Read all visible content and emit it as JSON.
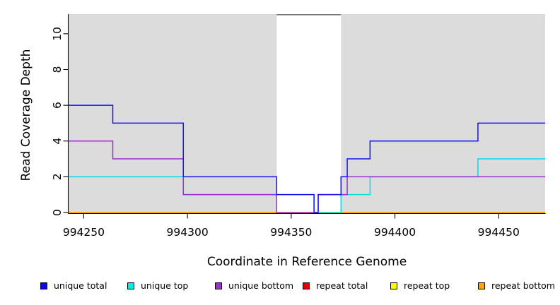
{
  "figure": {
    "background": "#ffffff",
    "panel_color": "#dcdcdc",
    "axis_color": "#000000"
  },
  "axes": {
    "x_label": "Coordinate in Reference Genome",
    "y_label": "Read Coverage Depth",
    "x_ticks": [
      "994250",
      "994300",
      "994350",
      "994400",
      "994450"
    ],
    "x_tick_values": [
      994250,
      994300,
      994350,
      994400,
      994450
    ],
    "y_ticks": [
      "0",
      "2",
      "4",
      "6",
      "8",
      "10"
    ],
    "y_tick_values": [
      0,
      2,
      4,
      6,
      8,
      10
    ]
  },
  "legend": {
    "items": [
      {
        "label": "unique total",
        "color": "#0a0af0"
      },
      {
        "label": "unique top",
        "color": "#00eded"
      },
      {
        "label": "unique bottom",
        "color": "#9932cc"
      },
      {
        "label": "repeat total",
        "color": "#e60000"
      },
      {
        "label": "repeat top",
        "color": "#fbfb00"
      },
      {
        "label": "repeat bottom",
        "color": "#ffa305"
      }
    ]
  },
  "chart_data": {
    "type": "line",
    "subtype": "step-coverage",
    "title": "",
    "xlabel": "Coordinate in Reference Genome",
    "ylabel": "Read Coverage Depth",
    "xlim": [
      994242.7,
      994472.4
    ],
    "ylim": [
      0,
      11.1
    ],
    "grid": false,
    "legend_position": "bottom-horizontal",
    "shaded_regions": [
      {
        "from": 994242.7,
        "to": 994343,
        "color": "#dcdcdc"
      },
      {
        "from": 994374,
        "to": 994472.4,
        "color": "#dcdcdc"
      }
    ],
    "masked_gap": {
      "from": 994343,
      "to": 994374,
      "fill": "#ffffff",
      "top_marker_color": "#787878"
    },
    "series": [
      {
        "name": "repeat total",
        "color": "#e60000",
        "x": [
          994242.7,
          994472.4
        ],
        "depths": [
          0
        ]
      },
      {
        "name": "repeat top",
        "color": "#fbfb00",
        "x": [
          994242.7,
          994472.4
        ],
        "depths": [
          0
        ]
      },
      {
        "name": "repeat bottom",
        "color": "#ffa305",
        "x": [
          994242.7,
          994472.4
        ],
        "depths": [
          0
        ]
      },
      {
        "name": "unique top",
        "color": "#00dde4",
        "x": [
          994242.7,
          994298,
          994361,
          994374,
          994388,
          994440,
          994472.4
        ],
        "depths": [
          2,
          1,
          0,
          1,
          2,
          3
        ]
      },
      {
        "name": "unique bottom",
        "color": "#9932cc",
        "x": [
          994242.7,
          994264,
          994298,
          994343,
          994363,
          994377,
          994472.4
        ],
        "depths": [
          4,
          3,
          1,
          0,
          1,
          2
        ]
      },
      {
        "name": "unique total",
        "color": "#1414f0",
        "x": [
          994242.7,
          994264,
          994298,
          994343,
          994361,
          994363,
          994374,
          994377,
          994388,
          994440,
          994472.4
        ],
        "depths": [
          6,
          5,
          2,
          1,
          0,
          1,
          2,
          3,
          4,
          5
        ]
      }
    ]
  }
}
